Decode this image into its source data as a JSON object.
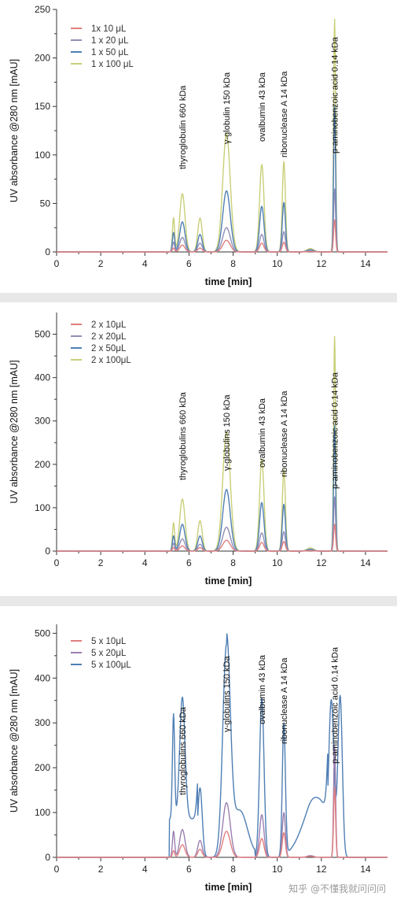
{
  "watermark": "知乎 @不懂我就问问问",
  "chart_data": [
    {
      "type": "line",
      "title": "",
      "xlabel": "time [min]",
      "ylabel": "UV absorbance @280 nm [mAU]",
      "xlim": [
        0,
        15
      ],
      "ylim": [
        0,
        250
      ],
      "xticks": [
        0,
        2,
        4,
        6,
        8,
        10,
        12,
        14
      ],
      "yticks": [
        0,
        50,
        100,
        150,
        200,
        250
      ],
      "legend_position": "top-left",
      "annotations": [
        {
          "text": "thyroglobulin 660 kDa",
          "x": 5.7
        },
        {
          "text": "γ-globulin 150 kDa",
          "x": 7.7
        },
        {
          "text": "ovalbumin 43 kDa",
          "x": 9.3
        },
        {
          "text": "ribonuclease A 14 kDa",
          "x": 10.3
        },
        {
          "text": "p-aminobenzoic acid 0.14 kDa",
          "x": 12.6
        }
      ],
      "series": [
        {
          "name": "1x 10 μL",
          "color": "#e07f7f",
          "peaks": [
            {
              "x": 5.3,
              "y": 4
            },
            {
              "x": 5.7,
              "y": 7
            },
            {
              "x": 6.5,
              "y": 4
            },
            {
              "x": 7.7,
              "y": 12
            },
            {
              "x": 9.3,
              "y": 9
            },
            {
              "x": 10.3,
              "y": 10
            },
            {
              "x": 12.6,
              "y": 33
            }
          ]
        },
        {
          "name": "1 x 20 μL",
          "color": "#8f8fb8",
          "peaks": [
            {
              "x": 5.3,
              "y": 10
            },
            {
              "x": 5.7,
              "y": 15
            },
            {
              "x": 6.5,
              "y": 9
            },
            {
              "x": 7.7,
              "y": 25
            },
            {
              "x": 9.3,
              "y": 18
            },
            {
              "x": 10.3,
              "y": 21
            },
            {
              "x": 12.6,
              "y": 65
            }
          ]
        },
        {
          "name": "1 x 50 μL",
          "color": "#4f7fb4",
          "peaks": [
            {
              "x": 5.3,
              "y": 20
            },
            {
              "x": 5.7,
              "y": 31
            },
            {
              "x": 6.5,
              "y": 18
            },
            {
              "x": 7.7,
              "y": 63
            },
            {
              "x": 9.3,
              "y": 47
            },
            {
              "x": 10.3,
              "y": 51
            },
            {
              "x": 12.6,
              "y": 150
            }
          ]
        },
        {
          "name": "1 x 100 μL",
          "color": "#c9cf78",
          "peaks": [
            {
              "x": 5.3,
              "y": 35
            },
            {
              "x": 5.7,
              "y": 60
            },
            {
              "x": 6.5,
              "y": 35
            },
            {
              "x": 7.7,
              "y": 122
            },
            {
              "x": 9.3,
              "y": 90
            },
            {
              "x": 10.3,
              "y": 93
            },
            {
              "x": 12.6,
              "y": 240
            }
          ]
        }
      ]
    },
    {
      "type": "line",
      "title": "",
      "xlabel": "time [min]",
      "ylabel": "UV absorbance @280 nm [mAU]",
      "xlim": [
        0,
        15
      ],
      "ylim": [
        0,
        550
      ],
      "xticks": [
        0,
        2,
        4,
        6,
        8,
        10,
        12,
        14
      ],
      "yticks": [
        0,
        100,
        200,
        300,
        400,
        500
      ],
      "legend_position": "top-left",
      "annotations": [
        {
          "text": "thyroglobulins 660 kDa",
          "x": 5.7
        },
        {
          "text": "γ-globulins 150 kDa",
          "x": 7.7
        },
        {
          "text": "ovalbumin 43 kDa",
          "x": 9.3
        },
        {
          "text": "ribonuclease A 14 kDa",
          "x": 10.3
        },
        {
          "text": "p-aminobenzoic acid 0.14 kDa",
          "x": 12.6
        }
      ],
      "series": [
        {
          "name": "2 x 10μL",
          "color": "#e07f7f",
          "peaks": [
            {
              "x": 5.3,
              "y": 8
            },
            {
              "x": 5.7,
              "y": 12
            },
            {
              "x": 6.5,
              "y": 8
            },
            {
              "x": 7.7,
              "y": 25
            },
            {
              "x": 9.3,
              "y": 20
            },
            {
              "x": 10.3,
              "y": 22
            },
            {
              "x": 12.6,
              "y": 62
            }
          ]
        },
        {
          "name": "2 x 20μL",
          "color": "#8f8fb8",
          "peaks": [
            {
              "x": 5.3,
              "y": 18
            },
            {
              "x": 5.7,
              "y": 28
            },
            {
              "x": 6.5,
              "y": 16
            },
            {
              "x": 7.7,
              "y": 55
            },
            {
              "x": 9.3,
              "y": 42
            },
            {
              "x": 10.3,
              "y": 45
            },
            {
              "x": 12.6,
              "y": 125
            }
          ]
        },
        {
          "name": "2 x 50μL",
          "color": "#4f7fb4",
          "peaks": [
            {
              "x": 5.3,
              "y": 35
            },
            {
              "x": 5.7,
              "y": 62
            },
            {
              "x": 6.5,
              "y": 35
            },
            {
              "x": 7.7,
              "y": 142
            },
            {
              "x": 9.3,
              "y": 112
            },
            {
              "x": 10.3,
              "y": 108
            },
            {
              "x": 12.6,
              "y": 290
            }
          ]
        },
        {
          "name": "2 x 100μL",
          "color": "#c9cf78",
          "peaks": [
            {
              "x": 5.3,
              "y": 65
            },
            {
              "x": 5.7,
              "y": 120
            },
            {
              "x": 6.5,
              "y": 70
            },
            {
              "x": 7.7,
              "y": 275
            },
            {
              "x": 9.3,
              "y": 212
            },
            {
              "x": 10.3,
              "y": 188
            },
            {
              "x": 12.6,
              "y": 495
            }
          ]
        }
      ]
    },
    {
      "type": "line",
      "title": "",
      "xlabel": "time [min]",
      "ylabel": "UV absorbance @280 nm [mAU]",
      "xlim": [
        0,
        15
      ],
      "ylim": [
        0,
        520
      ],
      "xticks": [
        0,
        2,
        4,
        6,
        8,
        10,
        12,
        14
      ],
      "yticks": [
        0,
        100,
        200,
        300,
        400,
        500
      ],
      "legend_position": "top-left",
      "annotations": [
        {
          "text": "thyroglobulins 660 kDa",
          "x": 5.7
        },
        {
          "text": "γ-globulins 150 kDa",
          "x": 7.7
        },
        {
          "text": "ovalbumin 43 kDa",
          "x": 9.3
        },
        {
          "text": "ribonuclease A 14 kDa",
          "x": 10.3
        },
        {
          "text": "p-aminobenzoic acid 0.14 kDa",
          "x": 12.6
        }
      ],
      "series": [
        {
          "name": "5 x 10μL",
          "color": "#e07f7f",
          "peaks": [
            {
              "x": 5.3,
              "y": 15
            },
            {
              "x": 5.7,
              "y": 28
            },
            {
              "x": 6.5,
              "y": 18
            },
            {
              "x": 7.7,
              "y": 58
            },
            {
              "x": 9.3,
              "y": 42
            },
            {
              "x": 10.3,
              "y": 55
            },
            {
              "x": 12.6,
              "y": 155
            }
          ]
        },
        {
          "name": "5 x 20μL",
          "color": "#9a7fb0",
          "peaks": [
            {
              "x": 5.3,
              "y": 58
            },
            {
              "x": 5.7,
              "y": 62
            },
            {
              "x": 6.5,
              "y": 38
            },
            {
              "x": 7.7,
              "y": 122
            },
            {
              "x": 9.3,
              "y": 95
            },
            {
              "x": 10.3,
              "y": 100
            },
            {
              "x": 12.6,
              "y": 250
            }
          ]
        },
        {
          "name": "5 x 100μL",
          "color": "#4f7fb4",
          "peaks": [
            {
              "x": 5.3,
              "y": 234
            },
            {
              "x": 5.7,
              "y": 272
            },
            {
              "x": 6.5,
              "y": 155
            },
            {
              "x": 7.7,
              "y": 475
            },
            {
              "x": 9.3,
              "y": 355
            },
            {
              "x": 10.3,
              "y": 300
            },
            {
              "x": 12.45,
              "y": 352
            },
            {
              "x": 12.85,
              "y": 360
            }
          ]
        }
      ]
    }
  ]
}
